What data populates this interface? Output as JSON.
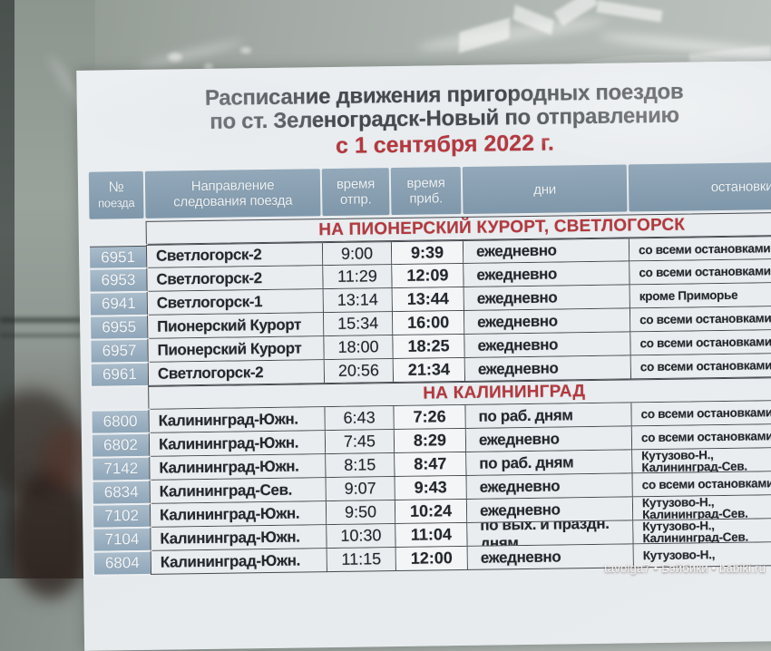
{
  "photo": {
    "watermark": "tavolga7 • Бэйбики • babiki.ru"
  },
  "title": {
    "line1": "Расписание движения пригородных поездов",
    "line2": "по ст. Зеленоградск-Новый по отправлению",
    "date_line": "с 1 сентября 2022 г.",
    "accent_color": "#b5383e"
  },
  "table": {
    "headers": {
      "num_l1": "№",
      "num_l2": "поезда",
      "direction_l1": "Направление",
      "direction_l2": "следования поезда",
      "dep_l1": "время",
      "dep_l2": "отпр.",
      "arr_l1": "время",
      "arr_l2": "приб.",
      "days": "дни",
      "stops": "остановки"
    },
    "colors": {
      "header_bg": "#8aa0b2",
      "num_cell_bg": "#a3b6c6",
      "section_red": "#b5383e"
    },
    "sections": [
      {
        "title": "НА ПИОНЕРСКИЙ КУРОРТ, СВЕТЛОГОРСК",
        "rows": [
          {
            "num": "6951",
            "dest": "Светлогорск-2",
            "dep": "9:00",
            "arr": "9:39",
            "days": "ежедневно",
            "stops": "со всеми остановками"
          },
          {
            "num": "6953",
            "dest": "Светлогорск-2",
            "dep": "11:29",
            "arr": "12:09",
            "days": "ежедневно",
            "stops": "со всеми остановками"
          },
          {
            "num": "6941",
            "dest": "Светлогорск-1",
            "dep": "13:14",
            "arr": "13:44",
            "days": "ежедневно",
            "stops": "кроме Приморье"
          },
          {
            "num": "6955",
            "dest": "Пионерский Курорт",
            "dep": "15:34",
            "arr": "16:00",
            "days": "ежедневно",
            "stops": "со всеми остановками"
          },
          {
            "num": "6957",
            "dest": "Пионерский Курорт",
            "dep": "18:00",
            "arr": "18:25",
            "days": "ежедневно",
            "stops": "со всеми остановками"
          },
          {
            "num": "6961",
            "dest": "Светлогорск-2",
            "dep": "20:56",
            "arr": "21:34",
            "days": "ежедневно",
            "stops": "со всеми остановками"
          }
        ]
      },
      {
        "title": "НА КАЛИНИНГРАД",
        "rows": [
          {
            "num": "6800",
            "dest": "Калининград-Южн.",
            "dep": "6:43",
            "arr": "7:26",
            "days": "по раб. дням",
            "stops": "со всеми остановками"
          },
          {
            "num": "6802",
            "dest": "Калининград-Южн.",
            "dep": "7:45",
            "arr": "8:29",
            "days": "ежедневно",
            "stops": "со всеми остановками"
          },
          {
            "num": "7142",
            "dest": "Калининград-Южн.",
            "dep": "8:15",
            "arr": "8:47",
            "days": "по раб. дням",
            "stops": "Кутузово-Н.,\nКалининград-Сев."
          },
          {
            "num": "6834",
            "dest": "Калининград-Сев.",
            "dep": "9:07",
            "arr": "9:43",
            "days": "ежедневно",
            "stops": "со всеми остановками"
          },
          {
            "num": "7102",
            "dest": "Калининград-Южн.",
            "dep": "9:50",
            "arr": "10:24",
            "days": "ежедневно",
            "stops": "Кутузово-Н.,\nКалининград-Сев."
          },
          {
            "num": "7104",
            "dest": "Калининград-Южн.",
            "dep": "10:30",
            "arr": "11:04",
            "days": "по вых. и праздн. дням",
            "stops": "Кутузово-Н.,\nКалининград-Сев."
          },
          {
            "num": "6804",
            "dest": "Калининград-Южн.",
            "dep": "11:15",
            "arr": "12:00",
            "days": "ежедневно",
            "stops": "Кутузово-Н.,"
          }
        ]
      }
    ]
  }
}
